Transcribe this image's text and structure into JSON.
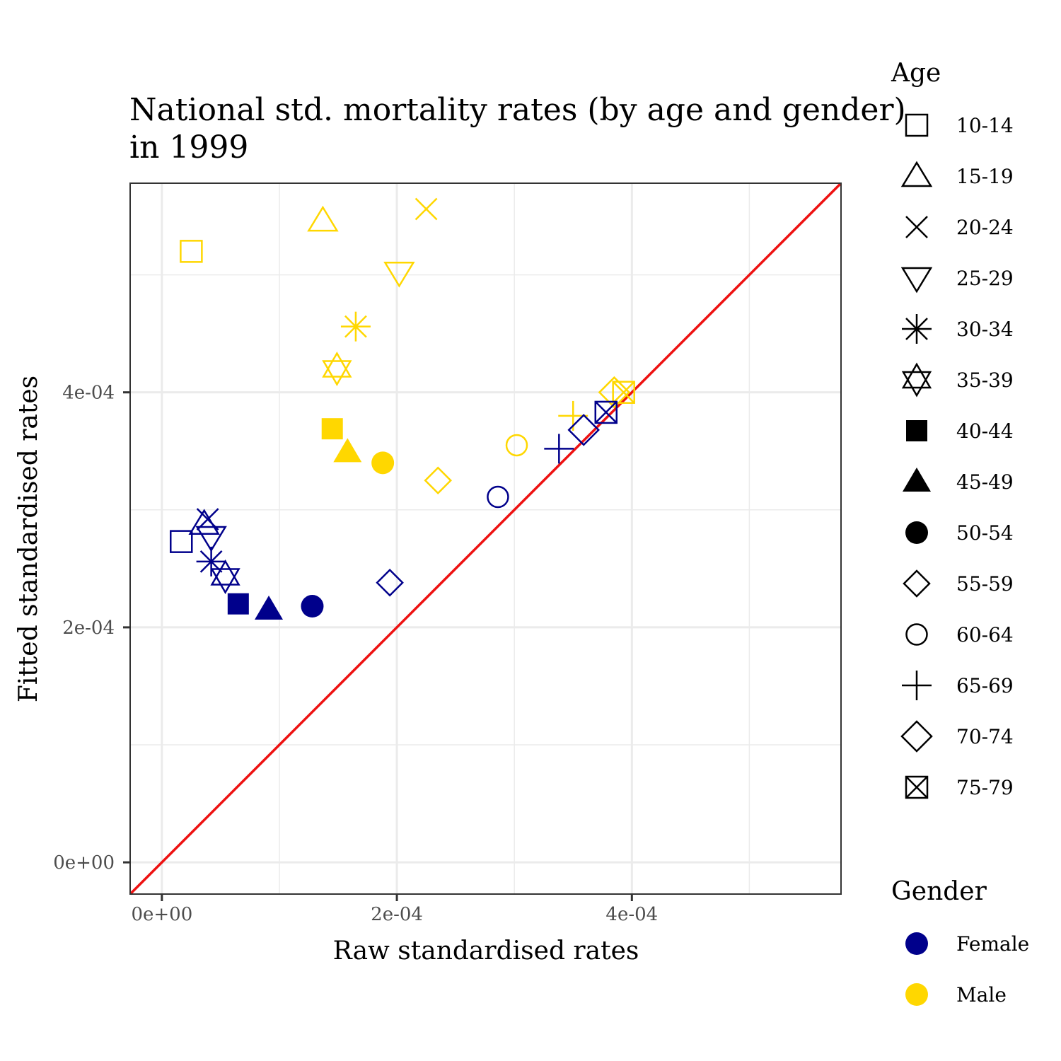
{
  "chart_data": {
    "type": "scatter",
    "title": "National std. mortality rates (by age and gender)",
    "title_line2": "in 1999",
    "xlabel": "Raw standardised rates",
    "ylabel": "Fitted standardised rates",
    "xlim": [
      -2.7e-05,
      0.000578
    ],
    "ylim": [
      -2.7e-05,
      0.000578
    ],
    "x_ticks": [
      0,
      0.0002,
      0.0004
    ],
    "x_tick_labels": [
      "0e+00",
      "2e-04",
      "4e-04"
    ],
    "y_ticks": [
      0,
      0.0002,
      0.0004
    ],
    "y_tick_labels": [
      "0e+00",
      "2e-04",
      "4e-04"
    ],
    "minor_grid": [
      0.0001,
      0.0003,
      0.0005
    ],
    "grid": true,
    "reference_line": {
      "slope": 1,
      "intercept": 0,
      "color": "#ee1111"
    },
    "legend_position": "right",
    "age_legend": {
      "title": "Age",
      "items": [
        {
          "label": "10-14",
          "shape": "square-open"
        },
        {
          "label": "15-19",
          "shape": "triangle-open"
        },
        {
          "label": "20-24",
          "shape": "cross-x"
        },
        {
          "label": "25-29",
          "shape": "triangle-down-open"
        },
        {
          "label": "30-34",
          "shape": "asterisk"
        },
        {
          "label": "35-39",
          "shape": "star-of-david"
        },
        {
          "label": "40-44",
          "shape": "square-filled"
        },
        {
          "label": "45-49",
          "shape": "triangle-filled"
        },
        {
          "label": "50-54",
          "shape": "circle-filled"
        },
        {
          "label": "55-59",
          "shape": "diamond-open"
        },
        {
          "label": "60-64",
          "shape": "circle-open"
        },
        {
          "label": "65-69",
          "shape": "plus"
        },
        {
          "label": "70-74",
          "shape": "diamond-open-large"
        },
        {
          "label": "75-79",
          "shape": "square-x"
        }
      ]
    },
    "gender_legend": {
      "title": "Gender",
      "items": [
        {
          "label": "Female",
          "color": "#00008b"
        },
        {
          "label": "Male",
          "color": "#ffd700"
        }
      ]
    },
    "series": [
      {
        "name": "Female",
        "color": "#00008b",
        "points": [
          {
            "age": "10-14",
            "x": 1.65e-05,
            "y": 0.000273
          },
          {
            "age": "15-19",
            "x": 3.6e-05,
            "y": 0.000288
          },
          {
            "age": "20-24",
            "x": 3.9e-05,
            "y": 0.000292
          },
          {
            "age": "25-29",
            "x": 4.2e-05,
            "y": 0.000277
          },
          {
            "age": "30-34",
            "x": 4.2e-05,
            "y": 0.000256
          },
          {
            "age": "35-39",
            "x": 5.4e-05,
            "y": 0.000243
          },
          {
            "age": "40-44",
            "x": 6.5e-05,
            "y": 0.00022
          },
          {
            "age": "45-49",
            "x": 9.1e-05,
            "y": 0.000215
          },
          {
            "age": "50-54",
            "x": 0.000128,
            "y": 0.000218
          },
          {
            "age": "55-59",
            "x": 0.000194,
            "y": 0.000238
          },
          {
            "age": "60-64",
            "x": 0.000286,
            "y": 0.000311
          },
          {
            "age": "65-69",
            "x": 0.000338,
            "y": 0.000352
          },
          {
            "age": "70-74",
            "x": 0.000359,
            "y": 0.000368
          },
          {
            "age": "75-79",
            "x": 0.000378,
            "y": 0.000383
          }
        ]
      },
      {
        "name": "Male",
        "color": "#ffd700",
        "points": [
          {
            "age": "10-14",
            "x": 2.5e-05,
            "y": 0.00052
          },
          {
            "age": "15-19",
            "x": 0.000137,
            "y": 0.000546
          },
          {
            "age": "20-24",
            "x": 0.000225,
            "y": 0.000556
          },
          {
            "age": "25-29",
            "x": 0.000202,
            "y": 0.000502
          },
          {
            "age": "30-34",
            "x": 0.000165,
            "y": 0.000456
          },
          {
            "age": "35-39",
            "x": 0.000149,
            "y": 0.00042
          },
          {
            "age": "40-44",
            "x": 0.000145,
            "y": 0.000369
          },
          {
            "age": "45-49",
            "x": 0.000158,
            "y": 0.000349
          },
          {
            "age": "50-54",
            "x": 0.000188,
            "y": 0.00034
          },
          {
            "age": "55-59",
            "x": 0.000235,
            "y": 0.000325
          },
          {
            "age": "60-64",
            "x": 0.000302,
            "y": 0.000355
          },
          {
            "age": "65-69",
            "x": 0.00035,
            "y": 0.00038
          },
          {
            "age": "70-74",
            "x": 0.000385,
            "y": 0.0004
          },
          {
            "age": "75-79",
            "x": 0.000393,
            "y": 0.0004
          }
        ]
      }
    ]
  }
}
